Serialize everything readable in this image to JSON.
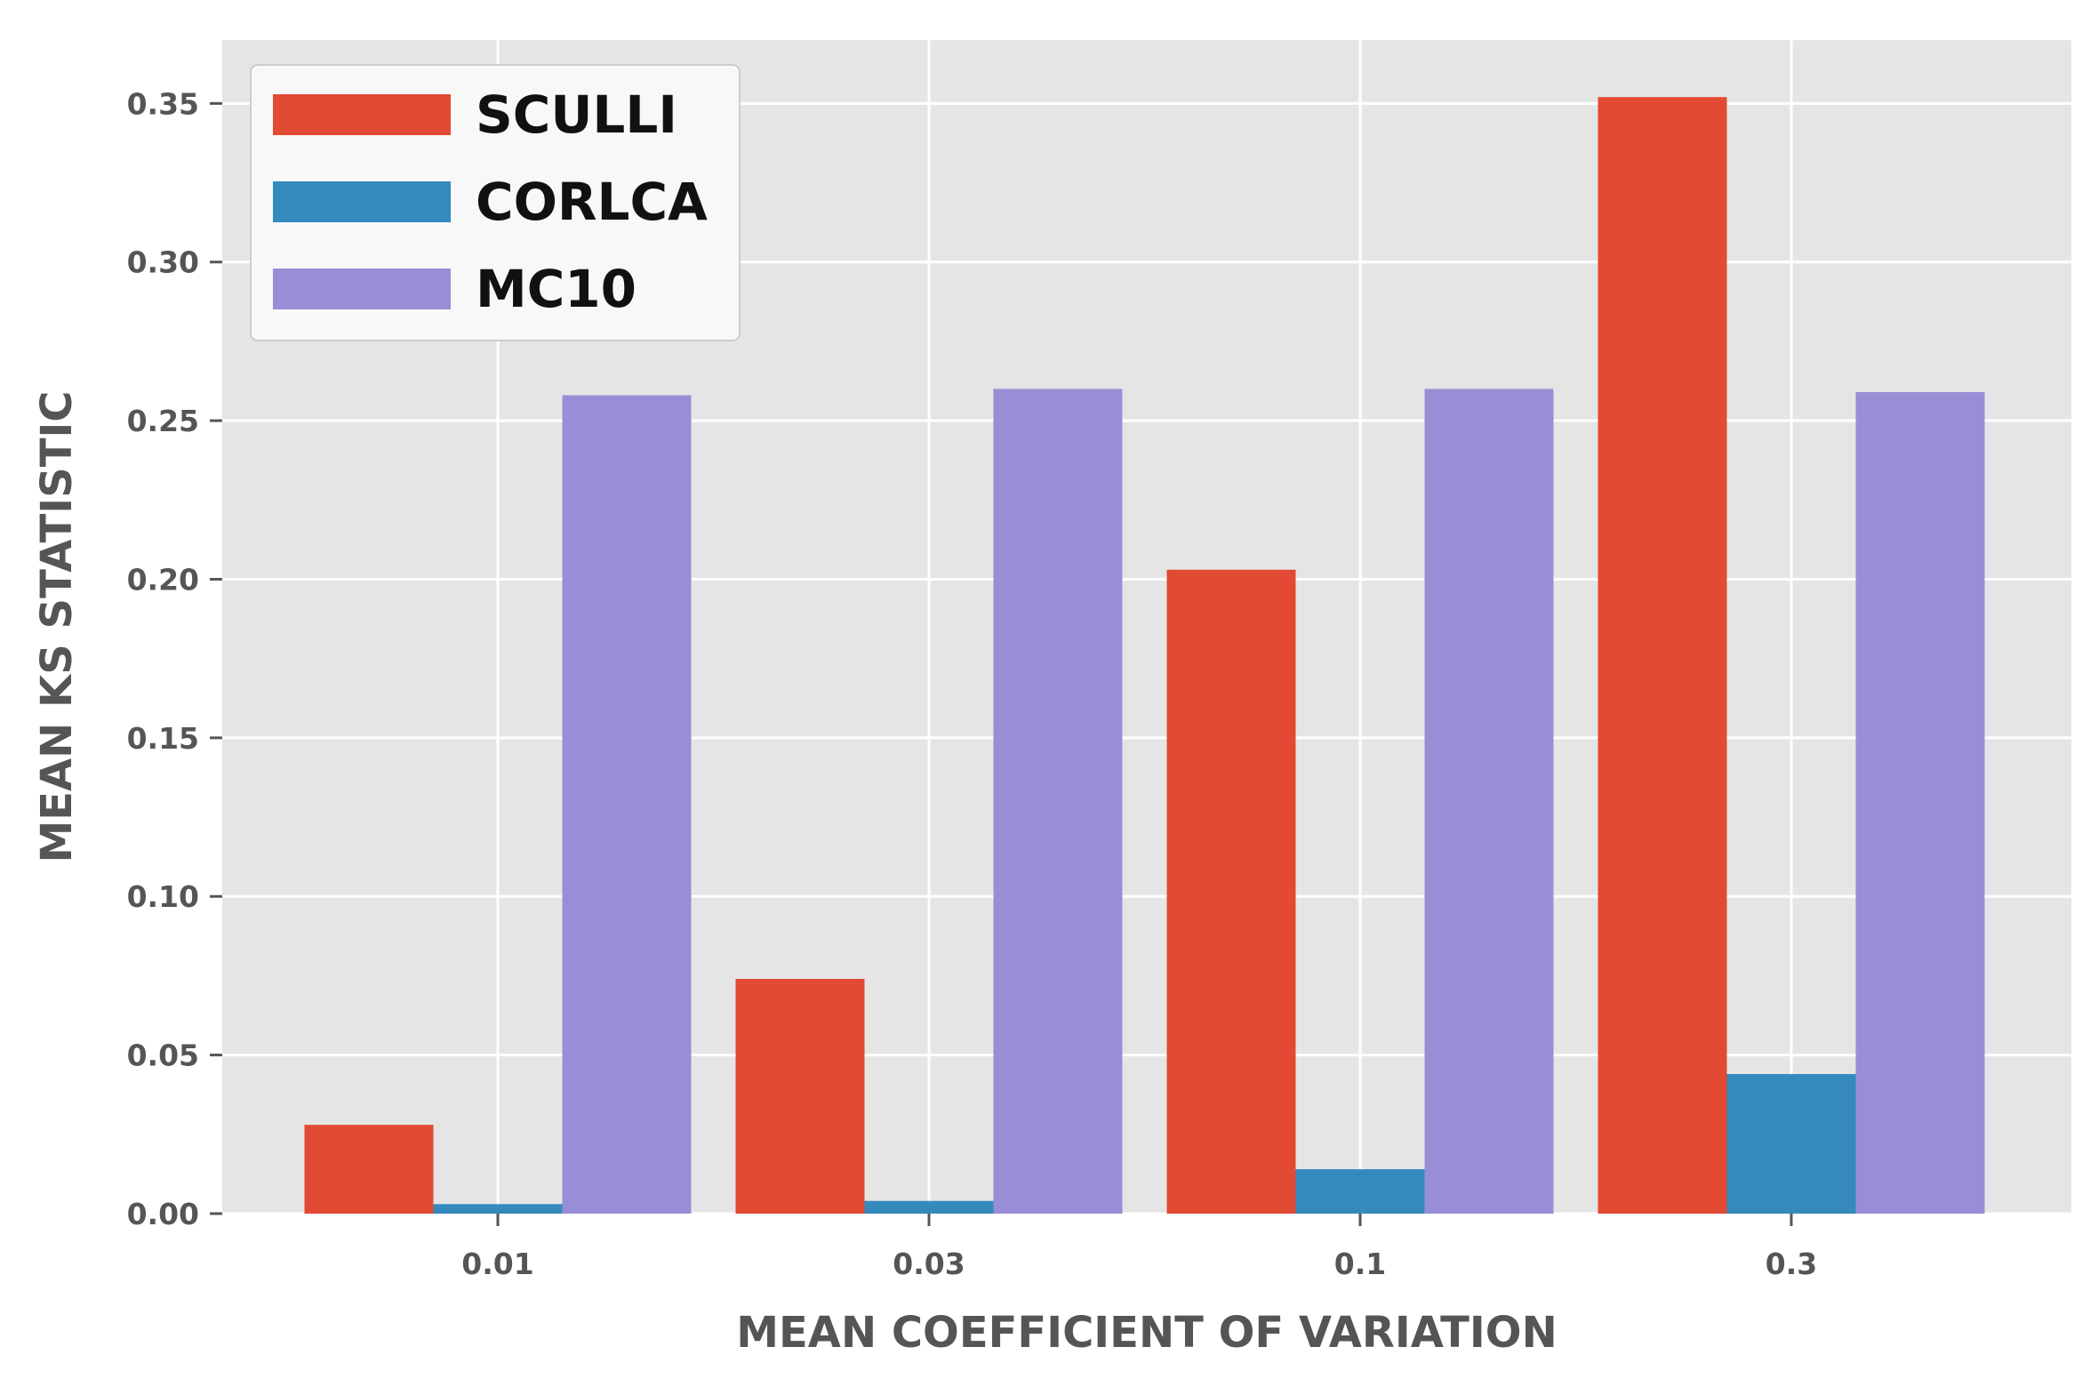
{
  "chart_data": {
    "type": "bar",
    "title": "",
    "xlabel": "MEAN COEFFICIENT OF VARIATION",
    "ylabel": "MEAN KS STATISTIC",
    "categories": [
      "0.01",
      "0.03",
      "0.1",
      "0.3"
    ],
    "series": [
      {
        "name": "SCULLI",
        "color": "#E24A33",
        "values": [
          0.028,
          0.074,
          0.203,
          0.352
        ]
      },
      {
        "name": "CORLCA",
        "color": "#348ABD",
        "values": [
          0.003,
          0.004,
          0.014,
          0.044
        ]
      },
      {
        "name": "MC10",
        "color": "#988ED5",
        "values": [
          0.258,
          0.26,
          0.26,
          0.259
        ]
      }
    ],
    "ylim": [
      0,
      0.37
    ],
    "yticks": [
      0.0,
      0.05,
      0.1,
      0.15,
      0.2,
      0.25,
      0.3,
      0.35
    ],
    "ytick_labels": [
      "0.00",
      "0.05",
      "0.10",
      "0.15",
      "0.20",
      "0.25",
      "0.30",
      "0.35"
    ],
    "grid": true,
    "legend_position": "top-left",
    "background_color": "#E5E5E5",
    "grid_color": "#FFFFFF"
  }
}
